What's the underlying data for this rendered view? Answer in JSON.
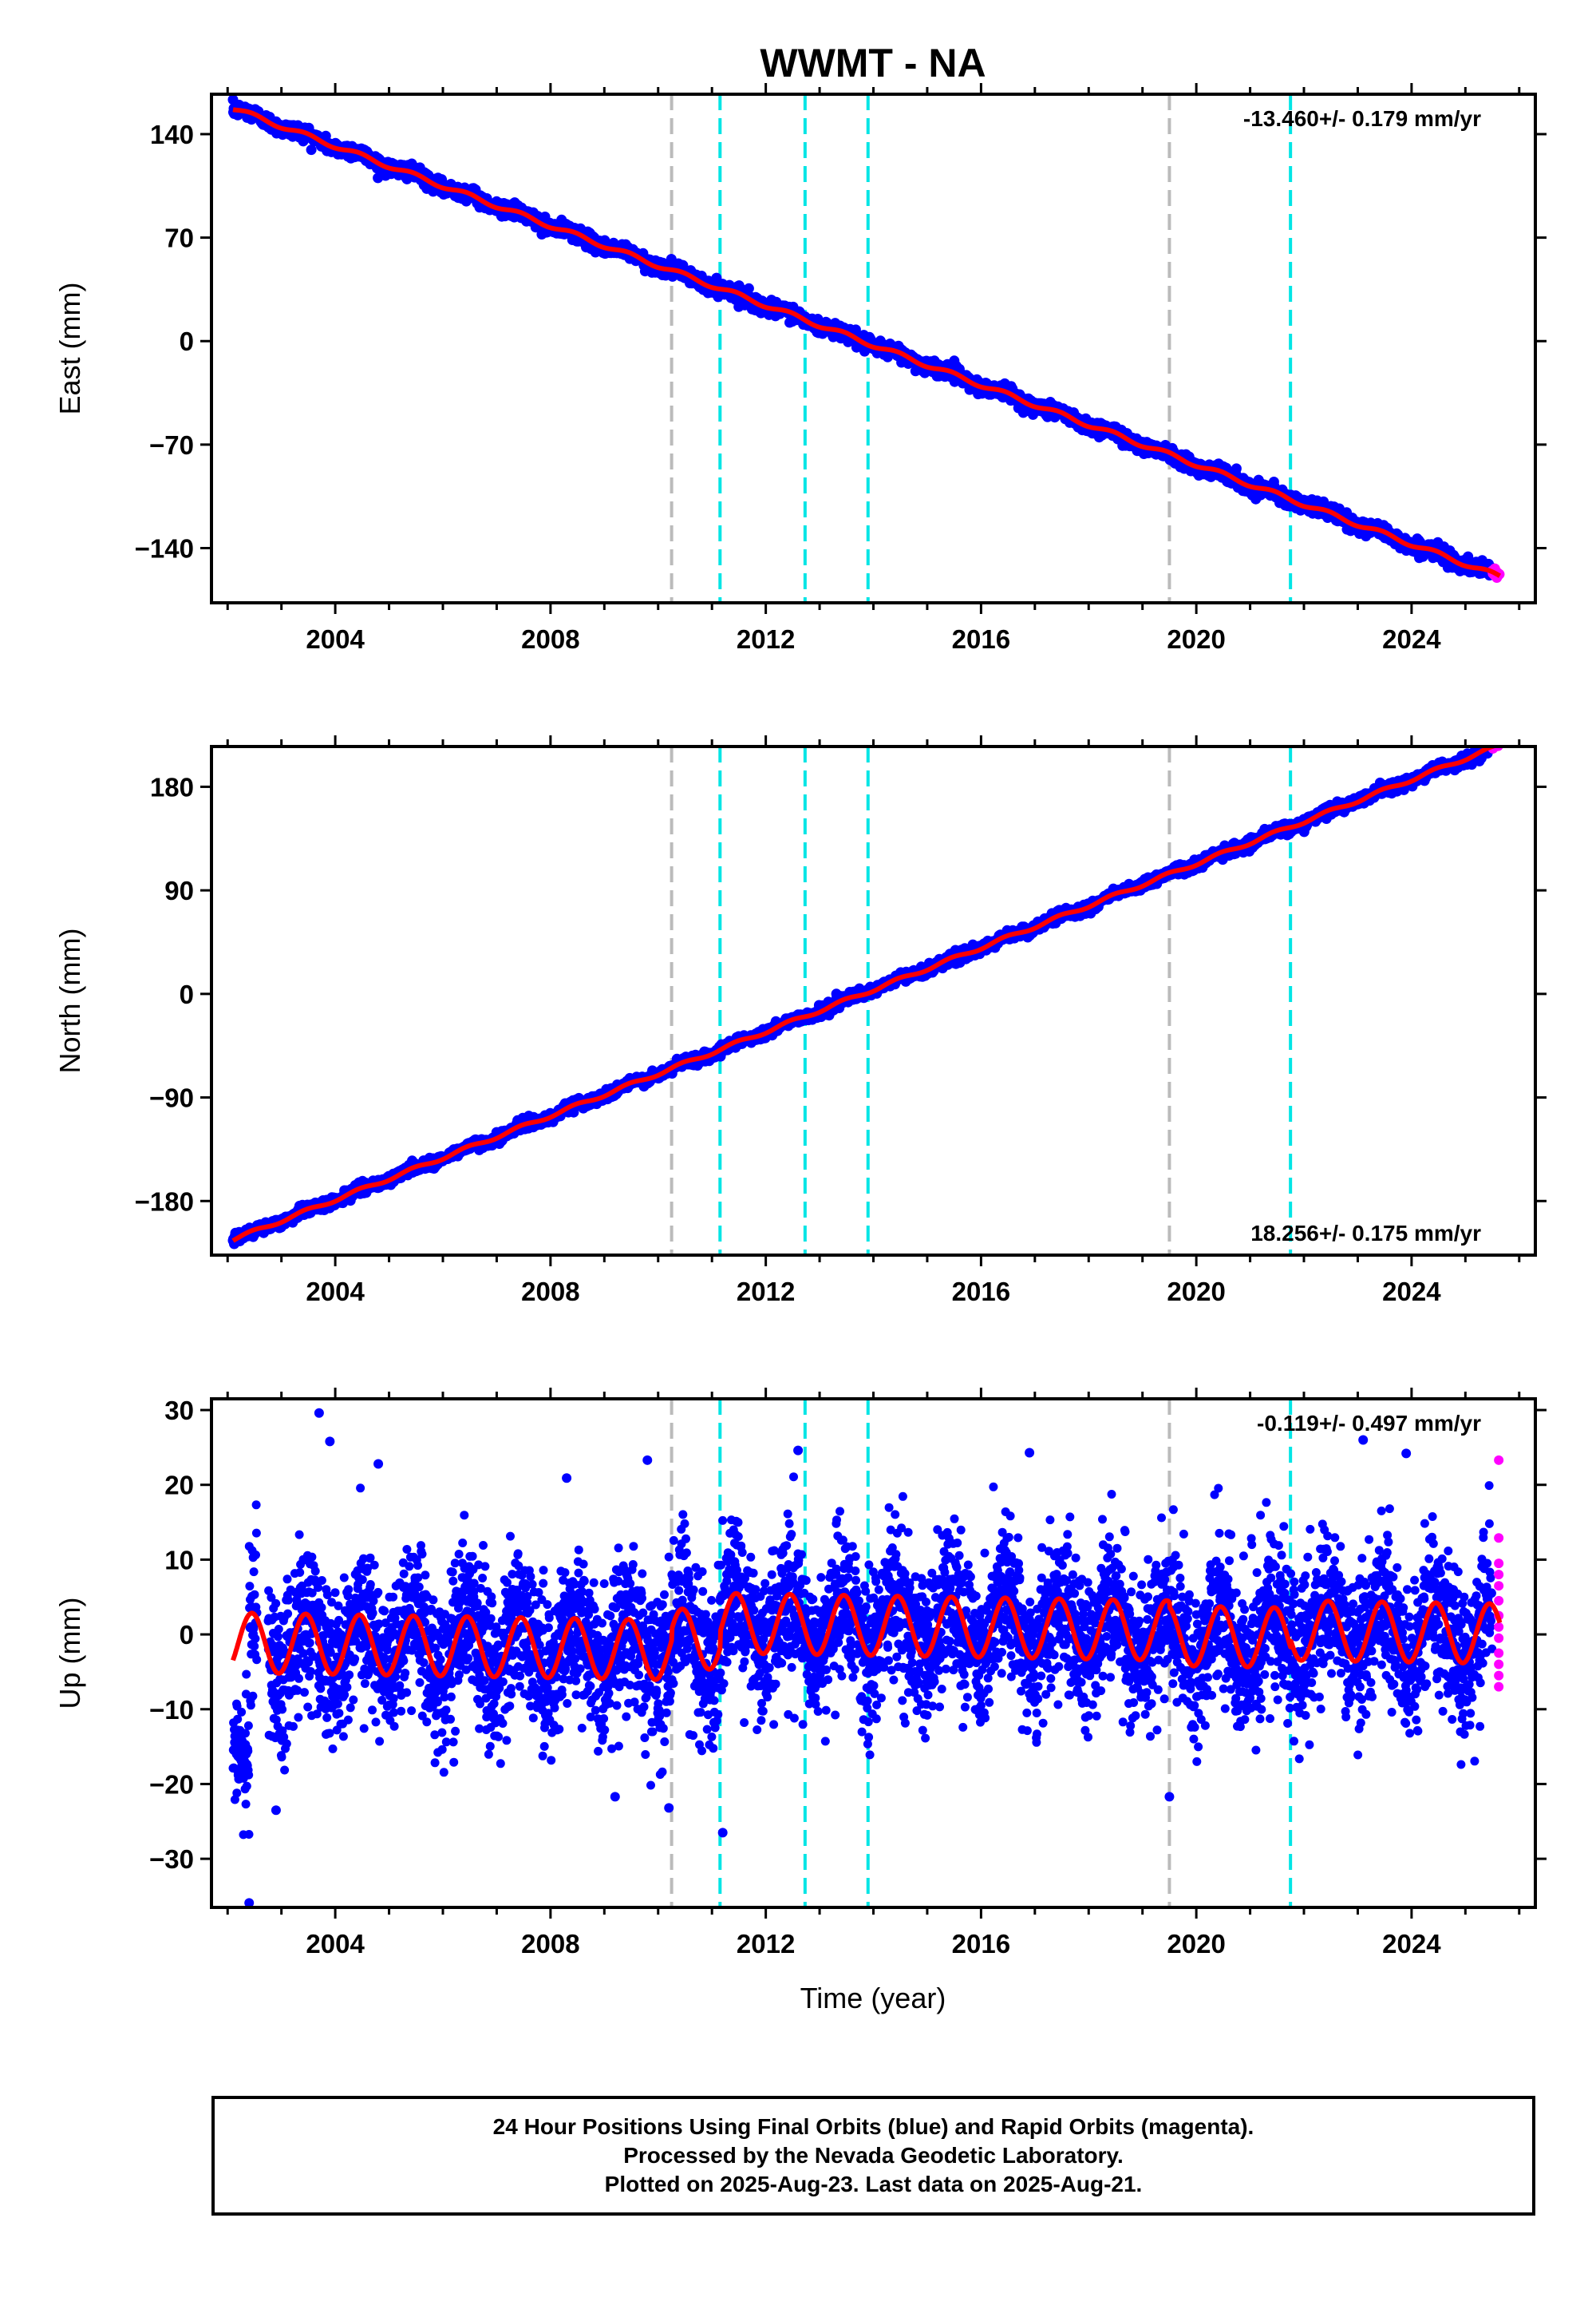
{
  "title": "WWMT - NA",
  "xlabel": "Time (year)",
  "footer": [
    "24 Hour Positions Using Final Orbits (blue) and Rapid Orbits (magenta).",
    "Processed by the Nevada Geodetic Laboratory.",
    "Plotted on 2025-Aug-23. Last data on 2025-Aug-21."
  ],
  "colors": {
    "final": "#0000ff",
    "rapid": "#ff00ff",
    "model": "#ff0000",
    "gray_event": "#bbbbbb",
    "cyan_event": "#00e5e5"
  },
  "events": {
    "gray": [
      2010.25,
      2019.5
    ],
    "cyan": [
      2011.15,
      2012.73,
      2013.9,
      2021.75
    ]
  },
  "chart_data": [
    {
      "type": "scatter",
      "name": "east",
      "ylabel": "East (mm)",
      "rate": "-13.460+/- 0.179 mm/yr",
      "rate_position": "top-right",
      "xlim": [
        2001.7,
        2026.3
      ],
      "ylim": [
        -177,
        167
      ],
      "xticks": [
        2004,
        2008,
        2012,
        2016,
        2020,
        2024
      ],
      "xtick_labels": [
        "2004",
        "2008",
        "2012",
        "2016",
        "2020",
        "2024"
      ],
      "yticks": [
        -140,
        -70,
        0,
        70,
        140
      ],
      "ytick_labels": [
        "−140",
        "−70",
        "0",
        "70",
        "140"
      ],
      "data_start": 2002.1,
      "data_end": 2025.64,
      "rapid_start": 2025.5,
      "trend": {
        "ref_year": 2013.8,
        "ref_value": 0,
        "slope": -13.46
      },
      "seasonal_amplitude": 1.5,
      "scatter_sd": 2.4
    },
    {
      "type": "scatter",
      "name": "north",
      "ylabel": "North (mm)",
      "rate": "18.256+/- 0.175 mm/yr",
      "rate_position": "bottom-right",
      "xlim": [
        2001.7,
        2026.3
      ],
      "ylim": [
        -227,
        215
      ],
      "xticks": [
        2004,
        2008,
        2012,
        2016,
        2020,
        2024
      ],
      "xtick_labels": [
        "2004",
        "2008",
        "2012",
        "2016",
        "2020",
        "2024"
      ],
      "yticks": [
        -180,
        -90,
        0,
        90,
        180
      ],
      "ytick_labels": [
        "−180",
        "−90",
        "0",
        "90",
        "180"
      ],
      "data_start": 2002.1,
      "data_end": 2025.64,
      "rapid_start": 2025.5,
      "trend": {
        "ref_year": 2013.8,
        "ref_value": 0,
        "slope": 18.256
      },
      "seasonal_amplitude": 1.5,
      "scatter_sd": 2.2
    },
    {
      "type": "scatter",
      "name": "up",
      "ylabel": "Up (mm)",
      "rate": "-0.119+/- 0.497 mm/yr",
      "rate_position": "top-right",
      "xlim": [
        2001.7,
        2026.3
      ],
      "ylim": [
        -36.5,
        31.5
      ],
      "xticks": [
        2004,
        2008,
        2012,
        2016,
        2020,
        2024
      ],
      "xtick_labels": [
        "2004",
        "2008",
        "2012",
        "2016",
        "2020",
        "2024"
      ],
      "yticks": [
        -30,
        -20,
        -10,
        0,
        10,
        20,
        30
      ],
      "ytick_labels": [
        "−30",
        "−20",
        "−10",
        "0",
        "10",
        "20",
        "30"
      ],
      "data_start": 2002.1,
      "data_end": 2025.64,
      "rapid_start": 2025.5,
      "trend": {
        "ref_year": 2013.8,
        "ref_value": 0,
        "slope": -0.119
      },
      "seasonal_amplitude": 4.0,
      "scatter_sd": 5.0,
      "model_offsets": [
        {
          "from": 2001.7,
          "to": 2010.25,
          "offset": -2.5
        },
        {
          "from": 2010.25,
          "to": 2011.15,
          "offset": -1.0
        },
        {
          "from": 2011.15,
          "to": 2019.5,
          "offset": 1.2
        },
        {
          "from": 2019.5,
          "to": 2021.75,
          "offset": 0.5
        },
        {
          "from": 2021.75,
          "to": 2026.3,
          "offset": 1.5
        }
      ],
      "outliers": [
        {
          "x": 2003.7,
          "y": 29.6
        },
        {
          "x": 2003.9,
          "y": 25.8
        },
        {
          "x": 2004.8,
          "y": 22.8
        },
        {
          "x": 2008.3,
          "y": 20.9
        },
        {
          "x": 2009.8,
          "y": 23.3
        },
        {
          "x": 2012.6,
          "y": 24.6
        },
        {
          "x": 2016.9,
          "y": 24.3
        },
        {
          "x": 2023.1,
          "y": 26.0
        },
        {
          "x": 2023.9,
          "y": 24.2
        },
        {
          "x": 2002.4,
          "y": -35.9
        },
        {
          "x": 2011.2,
          "y": -26.5
        },
        {
          "x": 2010.2,
          "y": -23.2
        },
        {
          "x": 2002.9,
          "y": -23.5
        },
        {
          "x": 2009.2,
          "y": -21.7
        },
        {
          "x": 2019.5,
          "y": -21.7
        }
      ],
      "rapid_points": [
        23.3,
        12.9,
        9.5,
        8.0,
        6.5,
        4.5,
        2.5,
        1.0,
        -0.5,
        -2.5,
        -4.0,
        -5.5,
        -7.0
      ]
    }
  ]
}
